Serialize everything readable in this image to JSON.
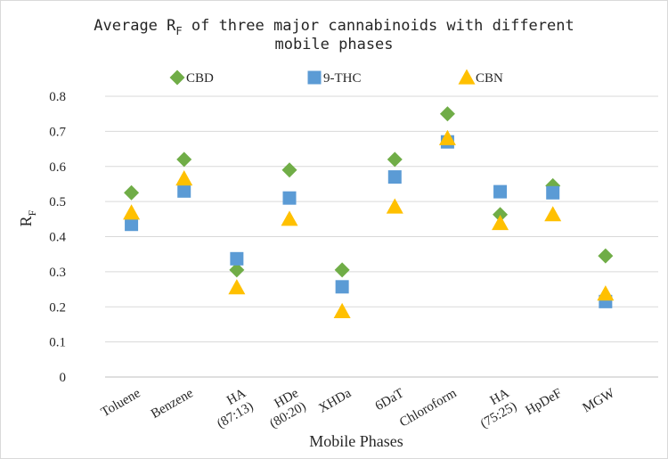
{
  "chart_data": {
    "type": "scatter",
    "title": {
      "line1_prefix": "Average R",
      "line1_sub": "F",
      "line1_suffix": " of three major cannabinoids with different",
      "line2": "mobile phases"
    },
    "xlabel": "Mobile Phases",
    "ylabel": {
      "main": "R",
      "sub": "F"
    },
    "ylim": [
      0,
      0.8
    ],
    "yticks": [
      0,
      0.1,
      0.2,
      0.3,
      0.4,
      0.5,
      0.6,
      0.7,
      0.8
    ],
    "ytick_labels": [
      "0",
      "0.1",
      "0.2",
      "0.3",
      "0.4",
      "0.5",
      "0.6",
      "0.7",
      "0.8"
    ],
    "categories": [
      [
        "Toluene"
      ],
      [
        "Benzene"
      ],
      [
        "HA",
        "(87:13)"
      ],
      [
        "HDe",
        "(80:20)"
      ],
      [
        "XHDa"
      ],
      [
        "6DaT"
      ],
      [
        "Chloroform"
      ],
      [
        "HA",
        "(75:25)"
      ],
      [
        "HpDeF"
      ],
      [
        "MGW"
      ]
    ],
    "grid": "horizontal",
    "legend_position": "top",
    "series": [
      {
        "name": "CBD",
        "marker": "diamond",
        "color": "#70AD47",
        "values": [
          0.525,
          0.62,
          0.305,
          0.59,
          0.305,
          0.62,
          0.75,
          0.463,
          0.545,
          0.345
        ]
      },
      {
        "name": "9-THC",
        "marker": "square",
        "color": "#5B9BD5",
        "values": [
          0.435,
          0.53,
          0.337,
          0.51,
          0.257,
          0.57,
          0.67,
          0.528,
          0.525,
          0.215
        ]
      },
      {
        "name": "CBN",
        "marker": "triangle",
        "color": "#FFC000",
        "values": [
          0.468,
          0.565,
          0.255,
          0.45,
          0.187,
          0.485,
          0.68,
          0.438,
          0.463,
          0.237
        ]
      }
    ]
  }
}
